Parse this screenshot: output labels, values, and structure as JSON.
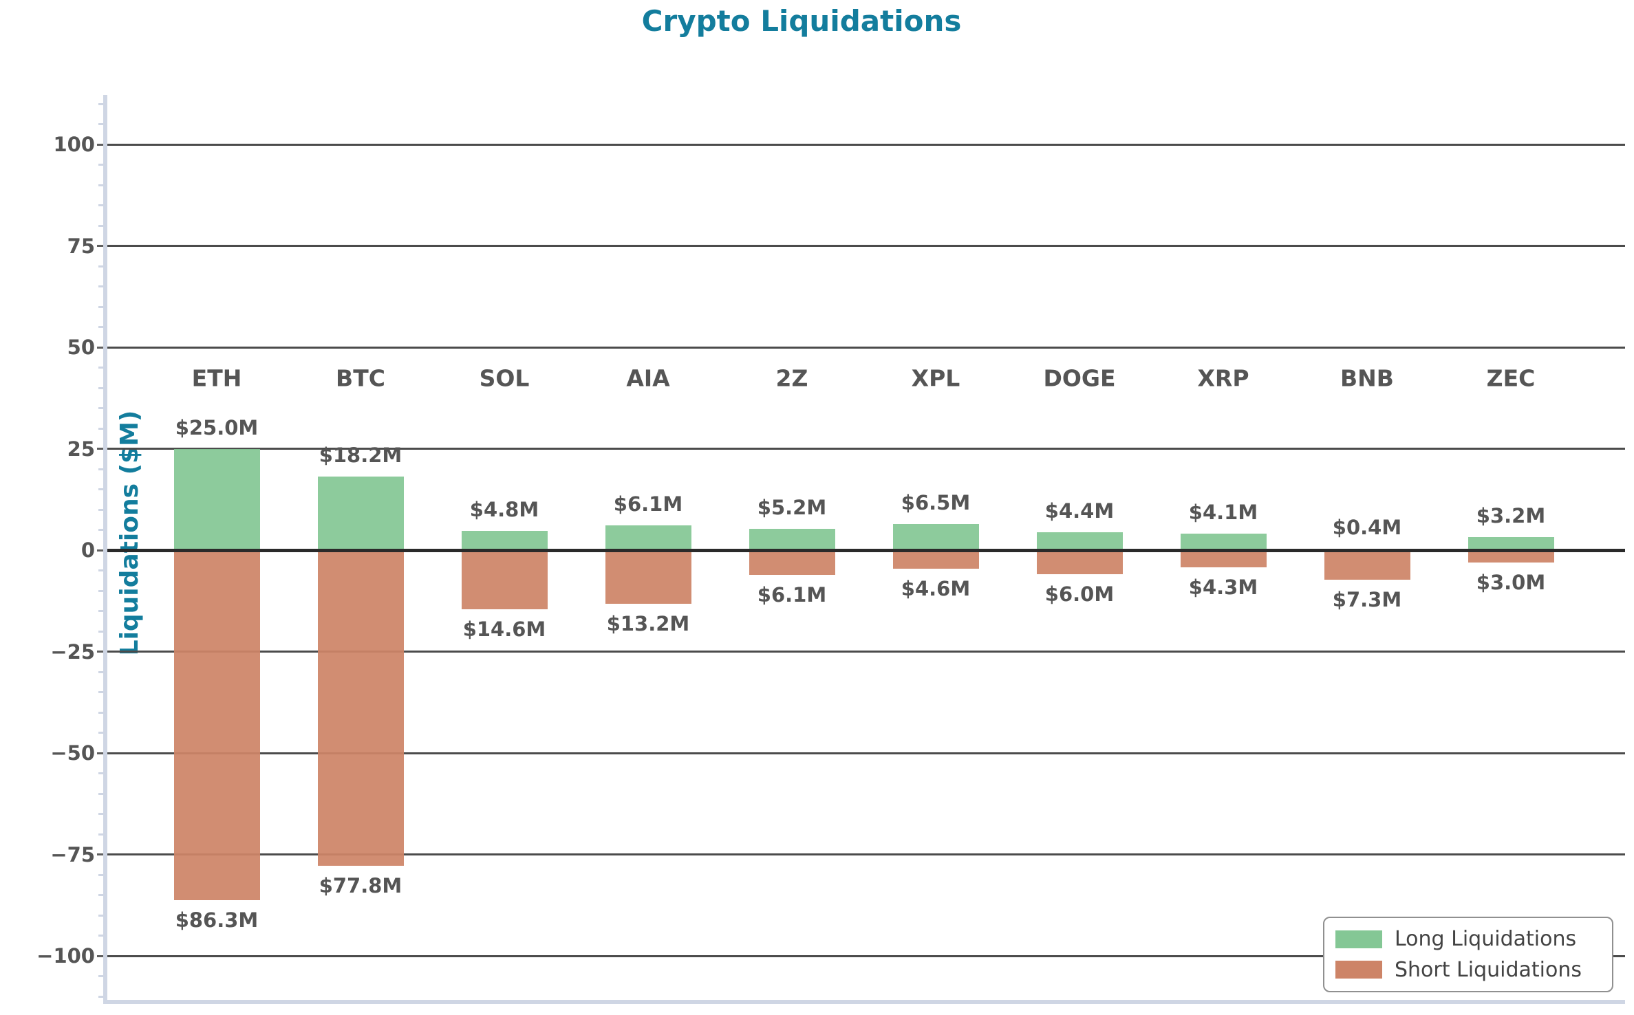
{
  "title": "Crypto Liquidations",
  "colors": {
    "title_teal": "#137d9d",
    "long_green": "#84c795",
    "short_salmon": "#cd8467",
    "grid": "#4b4b4b",
    "zero_line": "#2a2a2a",
    "axis_spine": "#cfd6e4",
    "label_gray": "#555555"
  },
  "chart_data": {
    "type": "bar",
    "title": "Crypto Liquidations",
    "ylabel": "Liquidations ($M)",
    "xlabel": "",
    "categories": [
      "ETH",
      "BTC",
      "SOL",
      "AIA",
      "2Z",
      "XPL",
      "DOGE",
      "XRP",
      "BNB",
      "ZEC"
    ],
    "series": [
      {
        "name": "Long Liquidations",
        "direction": "up",
        "color": "#84c795",
        "values": [
          25.0,
          18.2,
          4.8,
          6.1,
          5.2,
          6.5,
          4.4,
          4.1,
          0.4,
          3.2
        ],
        "data_labels": [
          "$25.0M",
          "$18.2M",
          "$4.8M",
          "$6.1M",
          "$5.2M",
          "$6.5M",
          "$4.4M",
          "$4.1M",
          "$0.4M",
          "$3.2M"
        ]
      },
      {
        "name": "Short Liquidations",
        "direction": "down",
        "color": "#cd8467",
        "values": [
          86.3,
          77.8,
          14.6,
          13.2,
          6.1,
          4.6,
          6.0,
          4.3,
          7.3,
          3.0
        ],
        "data_labels": [
          "$86.3M",
          "$77.8M",
          "$14.6M",
          "$13.2M",
          "$6.1M",
          "$4.6M",
          "$6.0M",
          "$4.3M",
          "$7.3M",
          "$3.0M"
        ]
      }
    ],
    "yticks": [
      100,
      75,
      50,
      25,
      0,
      -25,
      -50,
      -75,
      -100
    ],
    "minor_tick_step": 5,
    "ylim": [
      -112,
      112
    ],
    "grid": true,
    "legend_position": "lower right"
  }
}
